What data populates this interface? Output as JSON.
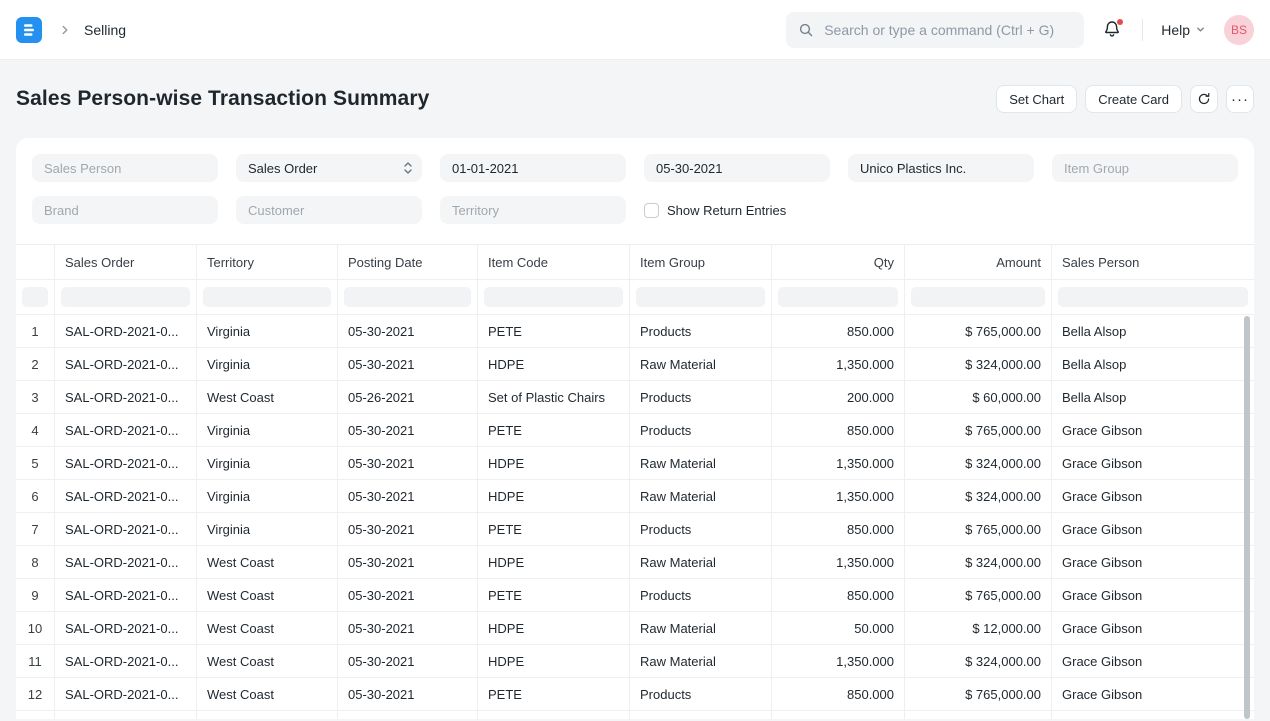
{
  "navbar": {
    "breadcrumb": "Selling",
    "search_placeholder": "Search or type a command (Ctrl + G)",
    "help_label": "Help",
    "avatar_initials": "BS"
  },
  "page": {
    "title": "Sales Person-wise Transaction Summary",
    "set_chart_label": "Set Chart",
    "create_card_label": "Create Card",
    "more_label": "···"
  },
  "filters": {
    "sales_person": {
      "placeholder": "Sales Person",
      "value": ""
    },
    "doctype": {
      "value": "Sales Order"
    },
    "from_date": {
      "value": "01-01-2021"
    },
    "to_date": {
      "value": "05-30-2021"
    },
    "company": {
      "value": "Unico Plastics Inc."
    },
    "item_group": {
      "placeholder": "Item Group",
      "value": ""
    },
    "brand": {
      "placeholder": "Brand",
      "value": ""
    },
    "customer": {
      "placeholder": "Customer",
      "value": ""
    },
    "territory": {
      "placeholder": "Territory",
      "value": ""
    },
    "show_return_entries": {
      "label": "Show Return Entries",
      "checked": false
    }
  },
  "table": {
    "columns": [
      {
        "key": "sales-order",
        "label": "Sales Order",
        "align": "left"
      },
      {
        "key": "territory",
        "label": "Territory",
        "align": "left"
      },
      {
        "key": "posting-date",
        "label": "Posting Date",
        "align": "left"
      },
      {
        "key": "item-code",
        "label": "Item Code",
        "align": "left"
      },
      {
        "key": "item-group",
        "label": "Item Group",
        "align": "left"
      },
      {
        "key": "qty",
        "label": "Qty",
        "align": "right"
      },
      {
        "key": "amount",
        "label": "Amount",
        "align": "right"
      },
      {
        "key": "sales-person",
        "label": "Sales Person",
        "align": "left"
      }
    ],
    "rows": [
      [
        "SAL-ORD-2021-0...",
        "Virginia",
        "05-30-2021",
        "PETE",
        "Products",
        "850.000",
        "$ 765,000.00",
        "Bella Alsop"
      ],
      [
        "SAL-ORD-2021-0...",
        "Virginia",
        "05-30-2021",
        "HDPE",
        "Raw Material",
        "1,350.000",
        "$ 324,000.00",
        "Bella Alsop"
      ],
      [
        "SAL-ORD-2021-0...",
        "West Coast",
        "05-26-2021",
        "Set of Plastic Chairs",
        "Products",
        "200.000",
        "$ 60,000.00",
        "Bella Alsop"
      ],
      [
        "SAL-ORD-2021-0...",
        "Virginia",
        "05-30-2021",
        "PETE",
        "Products",
        "850.000",
        "$ 765,000.00",
        "Grace Gibson"
      ],
      [
        "SAL-ORD-2021-0...",
        "Virginia",
        "05-30-2021",
        "HDPE",
        "Raw Material",
        "1,350.000",
        "$ 324,000.00",
        "Grace Gibson"
      ],
      [
        "SAL-ORD-2021-0...",
        "Virginia",
        "05-30-2021",
        "HDPE",
        "Raw Material",
        "1,350.000",
        "$ 324,000.00",
        "Grace Gibson"
      ],
      [
        "SAL-ORD-2021-0...",
        "Virginia",
        "05-30-2021",
        "PETE",
        "Products",
        "850.000",
        "$ 765,000.00",
        "Grace Gibson"
      ],
      [
        "SAL-ORD-2021-0...",
        "West Coast",
        "05-30-2021",
        "HDPE",
        "Raw Material",
        "1,350.000",
        "$ 324,000.00",
        "Grace Gibson"
      ],
      [
        "SAL-ORD-2021-0...",
        "West Coast",
        "05-30-2021",
        "PETE",
        "Products",
        "850.000",
        "$ 765,000.00",
        "Grace Gibson"
      ],
      [
        "SAL-ORD-2021-0...",
        "West Coast",
        "05-30-2021",
        "HDPE",
        "Raw Material",
        "50.000",
        "$ 12,000.00",
        "Grace Gibson"
      ],
      [
        "SAL-ORD-2021-0...",
        "West Coast",
        "05-30-2021",
        "HDPE",
        "Raw Material",
        "1,350.000",
        "$ 324,000.00",
        "Grace Gibson"
      ],
      [
        "SAL-ORD-2021-0...",
        "West Coast",
        "05-30-2021",
        "PETE",
        "Products",
        "850.000",
        "$ 765,000.00",
        "Grace Gibson"
      ]
    ]
  },
  "icons": {
    "logo": "erpnext-logo",
    "breadcrumb_chevron": "chevron-right",
    "search": "magnifier",
    "notifications": "bell-with-red-dot",
    "help_chevron": "chevron-down",
    "refresh": "circular-arrow",
    "select_chevrons": "up-down-chevrons"
  },
  "colors": {
    "brand_blue": "#2490ef",
    "page_bg": "#f4f5f6",
    "card_bg": "#ffffff",
    "text_dark": "#1f272e",
    "placeholder_gray": "#a1a8ad",
    "border_light": "#edeff1",
    "avatar_bg": "#f8d2d8",
    "avatar_text": "#e2596b",
    "notification_dot": "#e24c4c",
    "scrollbar": "#bfc5c9"
  }
}
